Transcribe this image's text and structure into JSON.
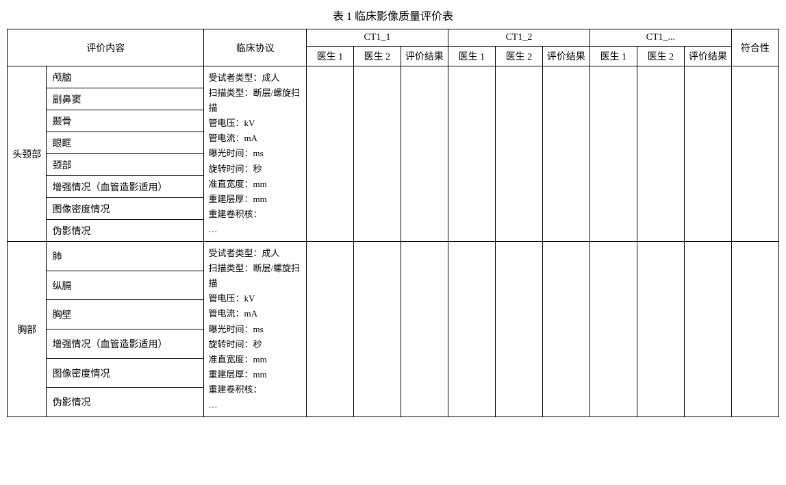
{
  "title": "表 1 临床影像质量评价表",
  "headers": {
    "eval_content": "评价内容",
    "protocol": "临床协议",
    "ct1": "CT1_1",
    "ct2": "CT1_2",
    "ct3": "CT1_...",
    "doc1": "医生 1",
    "doc2": "医生 2",
    "result": "评价结果",
    "conform": "符合性"
  },
  "sections": [
    {
      "category": "头颈部",
      "items": [
        "颅脑",
        "副鼻窦",
        "颞骨",
        "眼眶",
        "颈部",
        "增强情况（血管造影适用）",
        "图像密度情况",
        "伪影情况"
      ],
      "protocol_lines": [
        "受试者类型：成人",
        "扫描类型：断层/螺旋扫描",
        "管电压：kV",
        "管电流：mA",
        "曝光时间：ms",
        "旋转时间：秒",
        "准直宽度：mm",
        "重建层厚：mm",
        "重建卷积核：",
        "…"
      ]
    },
    {
      "category": "胸部",
      "items": [
        "肺",
        "纵膈",
        "胸壁",
        "增强情况（血管造影适用）",
        "图像密度情况",
        "伪影情况"
      ],
      "protocol_lines": [
        "受试者类型：成人",
        "扫描类型：断层/螺旋扫描",
        "管电压：kV",
        "管电流：mA",
        "曝光时间：ms",
        "旋转时间：秒",
        "准直宽度：mm",
        "重建层厚：mm",
        "重建卷积核：",
        "…"
      ]
    }
  ]
}
